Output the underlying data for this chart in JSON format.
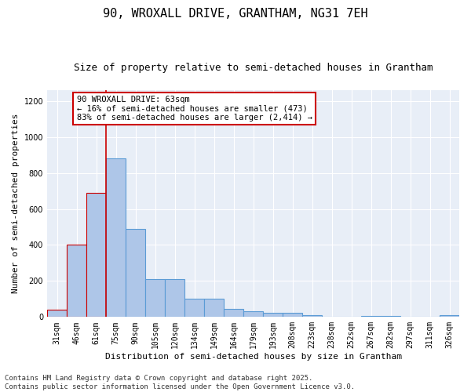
{
  "title_line1": "90, WROXALL DRIVE, GRANTHAM, NG31 7EH",
  "title_line2": "Size of property relative to semi-detached houses in Grantham",
  "xlabel": "Distribution of semi-detached houses by size in Grantham",
  "ylabel": "Number of semi-detached properties",
  "categories": [
    "31sqm",
    "46sqm",
    "61sqm",
    "75sqm",
    "90sqm",
    "105sqm",
    "120sqm",
    "134sqm",
    "149sqm",
    "164sqm",
    "179sqm",
    "193sqm",
    "208sqm",
    "223sqm",
    "238sqm",
    "252sqm",
    "267sqm",
    "282sqm",
    "297sqm",
    "311sqm",
    "326sqm"
  ],
  "values": [
    40,
    400,
    690,
    880,
    490,
    210,
    210,
    100,
    100,
    45,
    30,
    25,
    25,
    12,
    0,
    0,
    5,
    5,
    0,
    0,
    10
  ],
  "bar_color_normal": "#aec6e8",
  "bar_color_highlight": "#aec6e8",
  "bar_edge_normal": "#5b9bd5",
  "bar_edge_highlight": "#cc0000",
  "highlight_bar_indices": [
    0,
    1,
    2
  ],
  "vline_x_index": 2,
  "vline_color": "#cc0000",
  "annotation_box_text": "90 WROXALL DRIVE: 63sqm\n← 16% of semi-detached houses are smaller (473)\n83% of semi-detached houses are larger (2,414) →",
  "annotation_box_facecolor": "#ffffff",
  "annotation_box_edgecolor": "#cc0000",
  "ylim": [
    0,
    1260
  ],
  "yticks": [
    0,
    200,
    400,
    600,
    800,
    1000,
    1200
  ],
  "background_color": "#e8eef7",
  "footer_text": "Contains HM Land Registry data © Crown copyright and database right 2025.\nContains public sector information licensed under the Open Government Licence v3.0.",
  "title_fontsize": 11,
  "subtitle_fontsize": 9,
  "axis_label_fontsize": 8,
  "tick_fontsize": 7,
  "annotation_fontsize": 7.5,
  "footer_fontsize": 6.5
}
